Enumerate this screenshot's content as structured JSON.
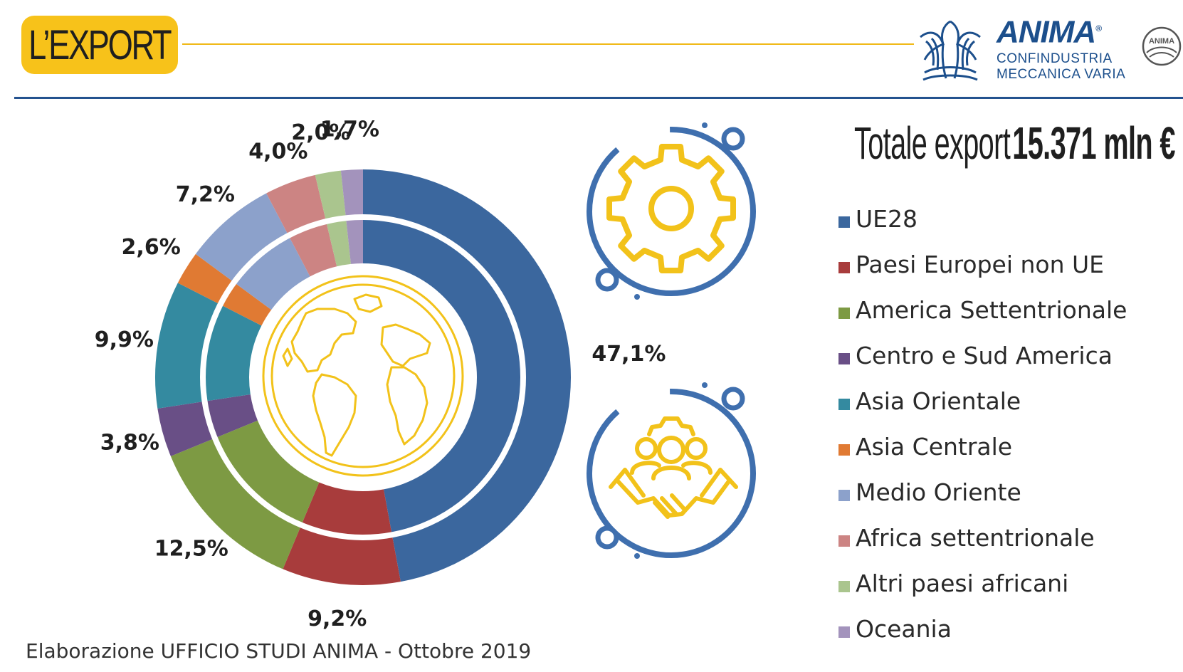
{
  "header": {
    "section_title": "L’EXPORT",
    "logo": {
      "brand": "ANIMA",
      "registered": "®",
      "sub_line1": "CONFINDUSTRIA",
      "sub_line2": "MECCANICA VARIA",
      "seal_text": "ANIMA"
    }
  },
  "total": {
    "label": "Totale export",
    "value": "15.371 mln €"
  },
  "colors": {
    "accent_yellow": "#f7c21a",
    "rule_blue": "#24528f",
    "icon_blue": "#3f6fae"
  },
  "icons": [
    "gear-icon",
    "globe-icon",
    "team-handshake-icon"
  ],
  "chart_data": {
    "type": "donut",
    "title": "",
    "unit": "%",
    "legend_position": "right",
    "categories": [
      "UE28",
      "Paesi Europei non UE",
      "America Settentrionale",
      "Centro e Sud America",
      "Asia Orientale",
      "Asia Centrale",
      "Medio Oriente",
      "Africa settentrionale",
      "Altri paesi africani",
      "Oceania"
    ],
    "values": [
      47.1,
      9.2,
      12.5,
      3.8,
      9.9,
      2.6,
      7.2,
      4.0,
      2.0,
      1.7
    ],
    "data_labels": [
      "47,1%",
      "9,2%",
      "12,5%",
      "3,8%",
      "9,9%",
      "2,6%",
      "7,2%",
      "4,0%",
      "2,0%",
      "1,7%"
    ],
    "colors": [
      "#3b679e",
      "#a83c3c",
      "#7d9a43",
      "#694f86",
      "#348aa0",
      "#e07a33",
      "#8ca1cb",
      "#cc8483",
      "#aac58e",
      "#a393bc"
    ]
  },
  "footer": {
    "source": "Elaborazione UFFICIO STUDI ANIMA - Ottobre 2019"
  }
}
